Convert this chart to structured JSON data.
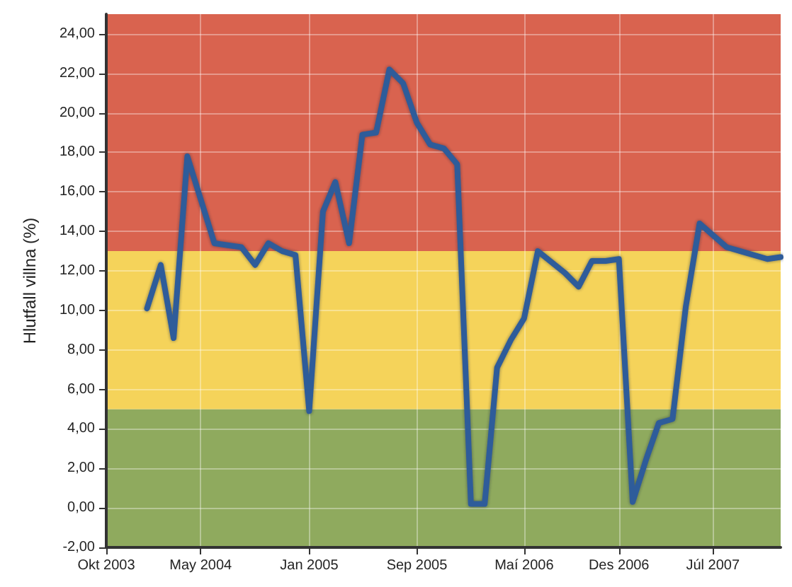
{
  "chart_data": {
    "type": "line",
    "ylabel": "Hlutfall villna (%)",
    "x": [
      "2004-01",
      "2004-02",
      "2004-03",
      "2004-04",
      "2004-06",
      "2004-07",
      "2004-08",
      "2004-09",
      "2004-10",
      "2004-11",
      "2004-12",
      "2005-01",
      "2005-02",
      "2005-03",
      "2005-04",
      "2005-05",
      "2005-06",
      "2005-07",
      "2005-08",
      "2005-09",
      "2005-10",
      "2005-11",
      "2005-12",
      "2006-01",
      "2006-02",
      "2006-03",
      "2006-04",
      "2006-05",
      "2006-06",
      "2006-08",
      "2006-09",
      "2006-10",
      "2006-11",
      "2006-12",
      "2007-01",
      "2007-02",
      "2007-03",
      "2007-04",
      "2007-05",
      "2007-06",
      "2007-08",
      "2007-09",
      "2007-11",
      "2007-12"
    ],
    "series": [
      {
        "color": "#2f5b9a",
        "values": [
          10.1,
          12.3,
          8.6,
          17.8,
          13.4,
          13.3,
          13.2,
          12.3,
          13.4,
          13.0,
          12.8,
          4.9,
          15.0,
          16.5,
          13.4,
          18.9,
          19.0,
          22.2,
          21.5,
          19.5,
          18.4,
          18.2,
          17.4,
          0.2,
          0.2,
          7.1,
          8.5,
          9.6,
          13.0,
          11.9,
          11.2,
          12.5,
          12.5,
          12.6,
          0.3,
          2.5,
          4.3,
          4.5,
          10.2,
          14.4,
          13.2,
          13.0,
          12.6,
          12.7
        ]
      }
    ],
    "xlim": [
      "2003-10",
      "2007-12"
    ],
    "xticks": [
      {
        "value": "2003-10",
        "label": "Okt 2003"
      },
      {
        "value": "2004-05",
        "label": "May 2004"
      },
      {
        "value": "2005-01",
        "label": "Jan 2005"
      },
      {
        "value": "2005-09",
        "label": "Sep 2005"
      },
      {
        "value": "2006-05",
        "label": "Maí 2006"
      },
      {
        "value": "2006-12",
        "label": "Des 2006"
      },
      {
        "value": "2007-07",
        "label": "Júl 2007"
      }
    ],
    "ylim": [
      -2,
      25
    ],
    "yticks": [
      {
        "value": -2,
        "label": "-2,00"
      },
      {
        "value": 0,
        "label": "0,00"
      },
      {
        "value": 2,
        "label": "2,00"
      },
      {
        "value": 4,
        "label": "4,00"
      },
      {
        "value": 6,
        "label": "6,00"
      },
      {
        "value": 8,
        "label": "8,00"
      },
      {
        "value": 10,
        "label": "10,00"
      },
      {
        "value": 12,
        "label": "12,00"
      },
      {
        "value": 14,
        "label": "14,00"
      },
      {
        "value": 16,
        "label": "16,00"
      },
      {
        "value": 18,
        "label": "18,00"
      },
      {
        "value": 20,
        "label": "20,00"
      },
      {
        "value": 22,
        "label": "22,00"
      },
      {
        "value": 24,
        "label": "24,00"
      }
    ],
    "bands": [
      {
        "axis": "y",
        "from": -2,
        "to": 5,
        "color": "#8faa5e"
      },
      {
        "axis": "y",
        "from": 5,
        "to": 13,
        "color": "#f5d35a"
      },
      {
        "axis": "y",
        "from": 13,
        "to": 25,
        "color": "#d9634f"
      }
    ],
    "grid": true,
    "marker": "none",
    "line_style": "solid"
  }
}
